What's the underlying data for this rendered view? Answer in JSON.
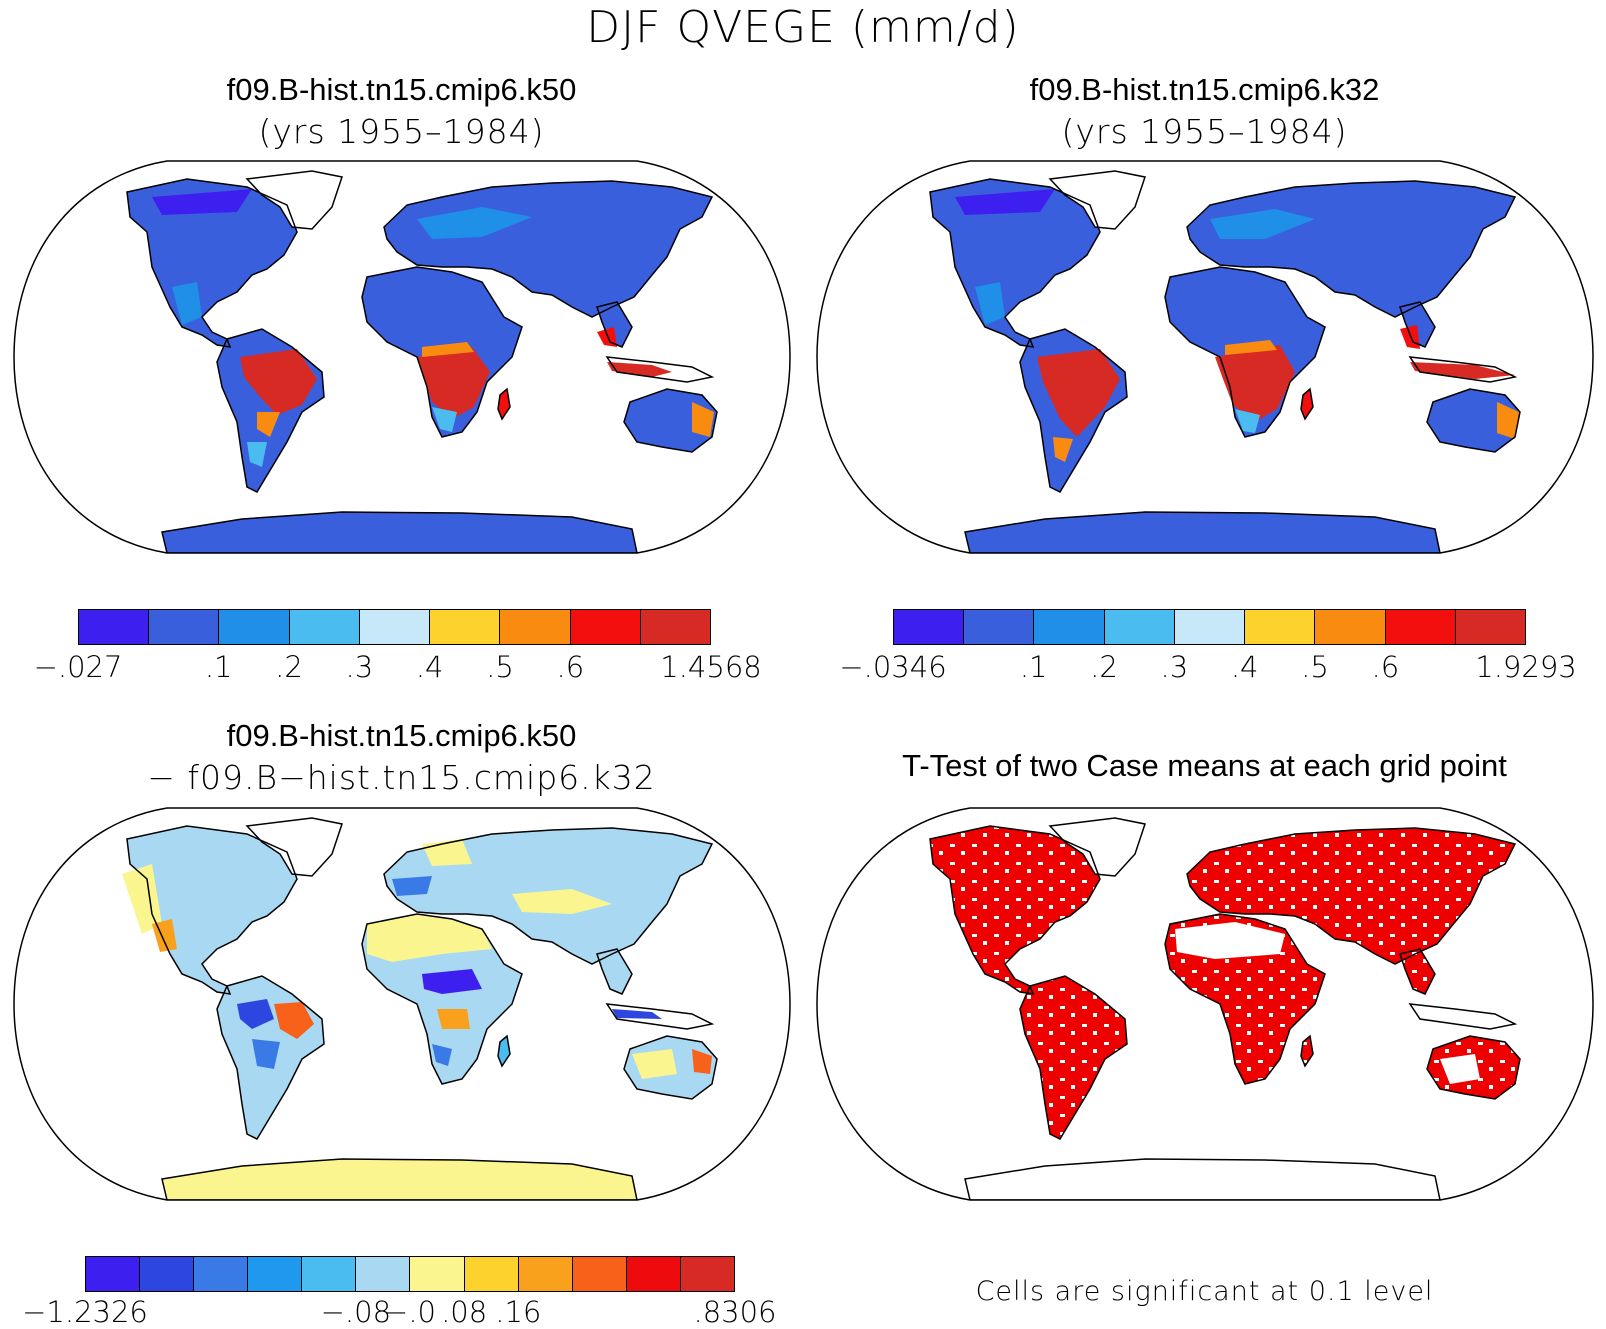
{
  "figure": {
    "title": "DJF QVEGE (mm/d)"
  },
  "panels": [
    {
      "id": "k50",
      "title": "f09.B-hist.tn15.cmip6.k50",
      "subtitle": "(yrs 1955–1984)",
      "colorbar": {
        "colors": [
          "#3d1ff0",
          "#3a5fdc",
          "#1f8fe8",
          "#4bbcf0",
          "#c7e8f8",
          "#fdd22c",
          "#f98c10",
          "#f20f0e",
          "#d72a24"
        ],
        "tick_labels": [
          "−.027",
          ".1",
          ".2",
          ".3",
          ".4",
          ".5",
          ".6",
          "1.4568"
        ]
      }
    },
    {
      "id": "k32",
      "title": "f09.B-hist.tn15.cmip6.k32",
      "subtitle": "(yrs 1955–1984)",
      "colorbar": {
        "colors": [
          "#3d1ff0",
          "#3a5fdc",
          "#1f8fe8",
          "#4bbcf0",
          "#c7e8f8",
          "#fdd22c",
          "#f98c10",
          "#f20f0e",
          "#d72a24"
        ],
        "tick_labels": [
          "−.0346",
          ".1",
          ".2",
          ".3",
          ".4",
          ".5",
          ".6",
          "1.9293"
        ]
      }
    },
    {
      "id": "diff",
      "title": "f09.B-hist.tn15.cmip6.k50",
      "subtitle": "− f09.B−hist.tn15.cmip6.k32",
      "colorbar": {
        "colors": [
          "#3d1ff0",
          "#2d46e0",
          "#3a7ae6",
          "#1f99ee",
          "#4bbcf0",
          "#a9d8f2",
          "#fbf58f",
          "#fdd22c",
          "#f9a01c",
          "#f7611a",
          "#ee0b0e",
          "#d72a24"
        ],
        "tick_labels": [
          "−1.2326",
          "−.08",
          "−.0",
          ".08",
          ".16",
          ".8306"
        ]
      }
    },
    {
      "id": "ttest",
      "title": "T-Test of two Case means at each grid point",
      "note": "Cells are significant at 0.1 level",
      "significant_color": "#ee0000"
    }
  ]
}
